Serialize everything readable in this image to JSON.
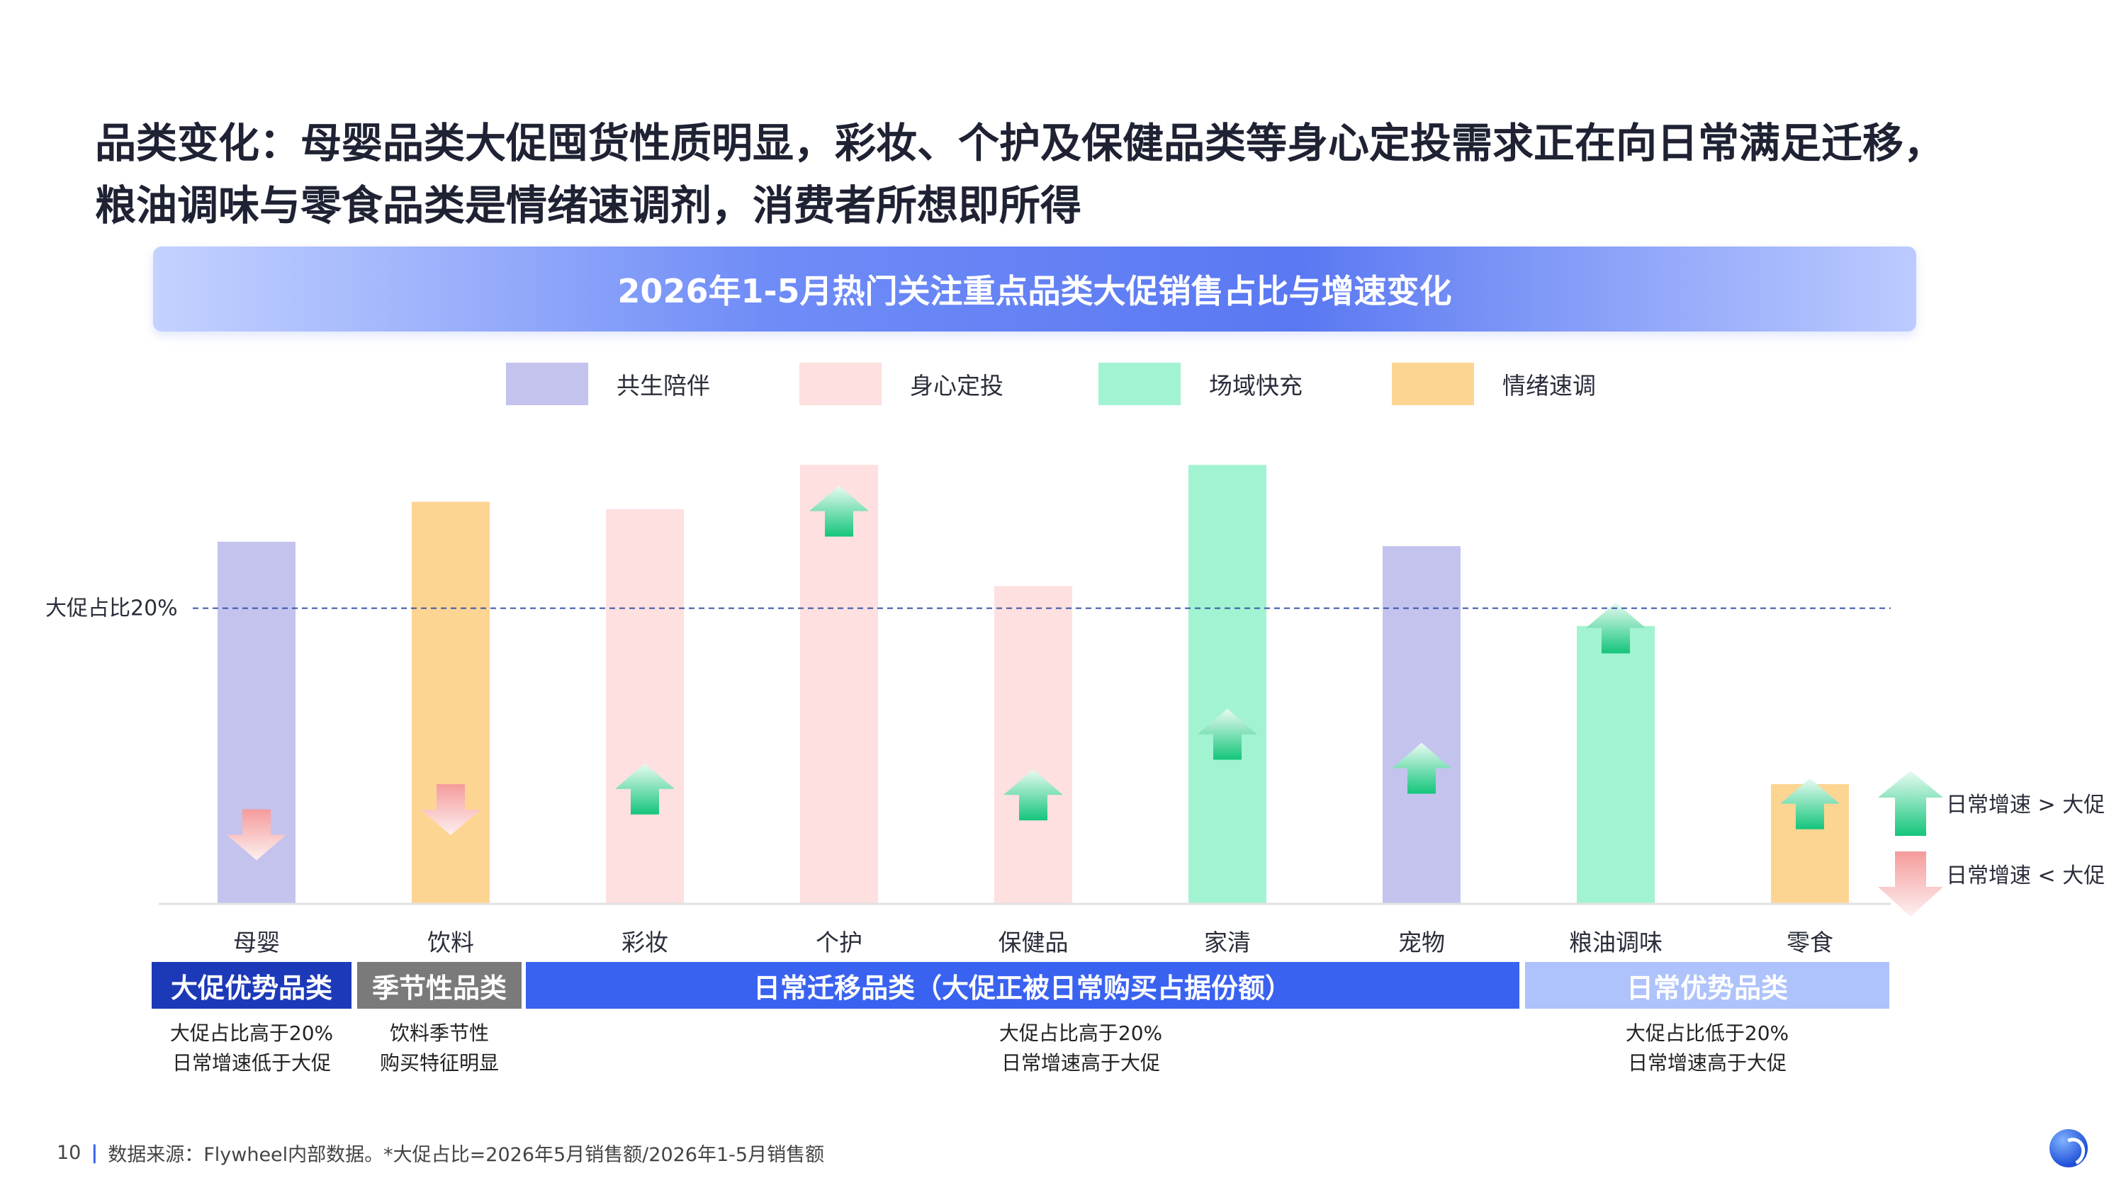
{
  "headline": {
    "line1": "品类变化：母婴品类大促囤货性质明显，彩妆、个护及保健品类等身心定投需求正在向日常满足迁移，",
    "line2": "粮油调味与零食品类是情绪速调剂，消费者所想即所得"
  },
  "colors": {
    "共生陪伴": "#c4c3ee",
    "身心定投": "#fde0df",
    "场域快充": "#a2f3d1",
    "情绪速调": "#fdd592",
    "group_blue": "#3a62f0",
    "group_gray": "#7a7a7a",
    "group_navy": "#1c39b8",
    "group_light": "#aec2fb",
    "arrow_up": "#14c57b",
    "arrow_down": "#f59b9b",
    "dashed_line": "#3a55a8"
  },
  "chart_data": {
    "type": "bar",
    "title": "2026年1-5月热门关注重点品类大促销售占比与增速变化",
    "categories": [
      "母婴",
      "饮料",
      "彩妆",
      "个护",
      "保健品",
      "家清",
      "宠物",
      "粮油调味",
      "零食"
    ],
    "values": [
      24.5,
      27.2,
      26.7,
      29.7,
      21.5,
      29.7,
      24.2,
      18.8,
      8.1
    ],
    "bar_groups": [
      "共生陪伴",
      "情绪速调",
      "身心定投",
      "身心定投",
      "身心定投",
      "场域快充",
      "共生陪伴",
      "场域快充",
      "情绪速调"
    ],
    "arrows": [
      "down",
      "down",
      "up",
      "up",
      "up",
      "up",
      "up",
      "up",
      "up"
    ],
    "arrow_levels": [
      6.4,
      8.1,
      9.5,
      28.3,
      9.1,
      13.2,
      10.9,
      20.4,
      8.5
    ],
    "reference_line": {
      "value": 20,
      "label": "大促占比20%"
    },
    "legend": [
      "共生陪伴",
      "身心定投",
      "场域快充",
      "情绪速调"
    ],
    "legend_position": "top",
    "arrow_legend": {
      "up": "日常增速 > 大促",
      "down": "日常增速 < 大促"
    },
    "ylim": [
      0,
      30
    ],
    "grid": false
  },
  "groups": [
    {
      "label": "大促优势品类",
      "note1": "大促占比高于20%",
      "note2": "日常增速低于大促"
    },
    {
      "label": "季节性品类",
      "note1": "饮料季节性",
      "note2": "购买特征明显"
    },
    {
      "label": "日常迁移品类（大促正被日常购买占据份额）",
      "note1": "大促占比高于20%",
      "note2": "日常增速高于大促"
    },
    {
      "label": "日常优势品类",
      "note1": "大促占比低于20%",
      "note2": "日常增速高于大促"
    }
  ],
  "footer": {
    "page": "10",
    "source": "数据来源：Flywheel内部数据。*大促占比=2026年5月销售额/2026年1-5月销售额"
  }
}
